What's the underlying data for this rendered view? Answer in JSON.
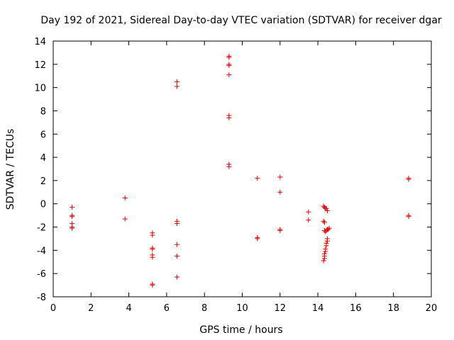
{
  "chart_data": {
    "type": "scatter",
    "title": "Day 192 of 2021, Sidereal Day-to-day VTEC variation (SDTVAR) for receiver dgar",
    "xlabel": "GPS time / hours",
    "ylabel": "SDTVAR / TECUs",
    "xlim": [
      0,
      20
    ],
    "ylim": [
      -8,
      14
    ],
    "xticks": [
      0,
      2,
      4,
      6,
      8,
      10,
      12,
      14,
      16,
      18,
      20
    ],
    "yticks": [
      -8,
      -6,
      -4,
      -2,
      0,
      2,
      4,
      6,
      8,
      10,
      12,
      14
    ],
    "grid": false,
    "marker": "+",
    "color": "#e00000",
    "series": [
      {
        "name": "SDTVAR",
        "points": [
          [
            1.0,
            -0.3
          ],
          [
            1.0,
            -1.0
          ],
          [
            1.0,
            -1.1
          ],
          [
            1.0,
            -1.7
          ],
          [
            1.0,
            -2.0
          ],
          [
            1.0,
            -2.1
          ],
          [
            3.8,
            0.5
          ],
          [
            3.8,
            -1.3
          ],
          [
            5.25,
            -2.5
          ],
          [
            5.25,
            -2.7
          ],
          [
            5.25,
            -3.8
          ],
          [
            5.25,
            -3.9
          ],
          [
            5.25,
            -4.4
          ],
          [
            5.25,
            -4.6
          ],
          [
            5.25,
            -6.9
          ],
          [
            5.25,
            -7.0
          ],
          [
            6.55,
            10.5
          ],
          [
            6.55,
            10.1
          ],
          [
            6.55,
            -1.5
          ],
          [
            6.55,
            -1.7
          ],
          [
            6.55,
            -3.5
          ],
          [
            6.55,
            -4.5
          ],
          [
            6.55,
            -6.3
          ],
          [
            9.3,
            12.7
          ],
          [
            9.3,
            12.6
          ],
          [
            9.3,
            12.0
          ],
          [
            9.3,
            11.9
          ],
          [
            9.3,
            11.1
          ],
          [
            9.3,
            7.6
          ],
          [
            9.3,
            7.4
          ],
          [
            9.3,
            3.4
          ],
          [
            9.3,
            3.2
          ],
          [
            10.8,
            2.2
          ],
          [
            10.8,
            -2.9
          ],
          [
            10.8,
            -3.0
          ],
          [
            12.0,
            2.3
          ],
          [
            12.0,
            1.0
          ],
          [
            12.0,
            -2.2
          ],
          [
            12.0,
            -2.3
          ],
          [
            13.5,
            -0.7
          ],
          [
            13.5,
            -1.4
          ],
          [
            14.3,
            -0.2
          ],
          [
            14.35,
            -0.3
          ],
          [
            14.4,
            -0.4
          ],
          [
            14.45,
            -0.4
          ],
          [
            14.5,
            -0.6
          ],
          [
            14.3,
            -1.5
          ],
          [
            14.35,
            -1.6
          ],
          [
            14.35,
            -2.3
          ],
          [
            14.4,
            -2.4
          ],
          [
            14.45,
            -2.3
          ],
          [
            14.5,
            -2.2
          ],
          [
            14.55,
            -2.2
          ],
          [
            14.6,
            -2.1
          ],
          [
            14.5,
            -3.0
          ],
          [
            14.5,
            -3.2
          ],
          [
            14.45,
            -3.4
          ],
          [
            14.45,
            -3.6
          ],
          [
            14.4,
            -3.9
          ],
          [
            14.4,
            -4.1
          ],
          [
            14.35,
            -4.3
          ],
          [
            14.35,
            -4.5
          ],
          [
            14.35,
            -4.7
          ],
          [
            14.3,
            -4.9
          ],
          [
            18.8,
            2.2
          ],
          [
            18.8,
            2.1
          ],
          [
            18.8,
            -1.0
          ],
          [
            18.8,
            -1.1
          ]
        ]
      }
    ]
  }
}
